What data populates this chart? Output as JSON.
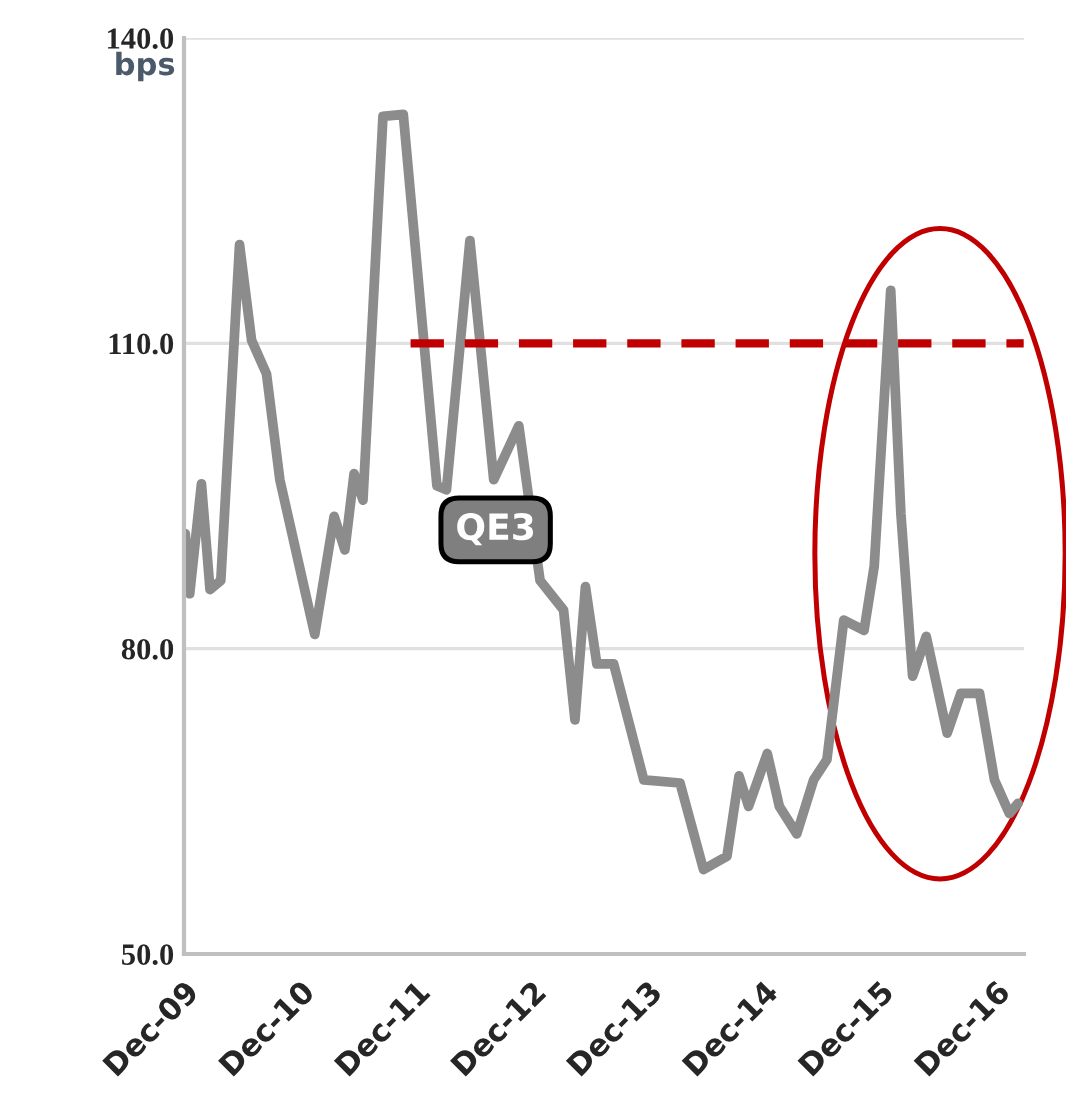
{
  "chart_data": {
    "type": "line",
    "ylabel": "bps",
    "x": [
      "2009-12-05",
      "2009-12-19",
      "2010-01-25",
      "2010-02-21",
      "2010-03-27",
      "2010-05-25",
      "2010-07-02",
      "2010-08-18",
      "2010-09-29",
      "2011-01-17",
      "2011-03-19",
      "2011-04-22",
      "2011-05-21",
      "2011-06-18",
      "2011-08-20",
      "2011-10-23",
      "2012-02-06",
      "2012-03-07",
      "2012-05-20",
      "2012-08-03",
      "2012-10-21",
      "2012-12-27",
      "2013-03-11",
      "2013-04-16",
      "2013-05-19",
      "2013-06-24",
      "2013-08-16",
      "2013-11-19",
      "2014-03-13",
      "2014-05-26",
      "2014-08-08",
      "2014-09-15",
      "2014-10-15",
      "2014-12-13",
      "2015-01-20",
      "2015-03-16",
      "2015-05-08",
      "2015-06-19",
      "2015-08-11",
      "2015-10-14",
      "2015-11-15",
      "2016-01-06",
      "2016-02-07",
      "2016-03-15",
      "2016-04-27",
      "2016-07-02",
      "2016-08-14",
      "2016-10-12",
      "2016-11-28",
      "2017-01-14",
      "2017-02-10"
    ],
    "series": [
      {
        "color": "#8c8c8c",
        "values": [
          91.3,
          85.4,
          96.2,
          85.8,
          86.7,
          119.7,
          110.3,
          107,
          96.6,
          81.4,
          93,
          89.7,
          97.2,
          94.6,
          132.3,
          132.5,
          96,
          95.6,
          120.1,
          96.6,
          101.9,
          86.7,
          83.8,
          73,
          86.1,
          78.5,
          78.5,
          67.1,
          66.8,
          58.3,
          59.6,
          67.5,
          64.5,
          69.7,
          64.5,
          61.8,
          67.1,
          69.1,
          82.8,
          81.8,
          88.1,
          115.2,
          93.3,
          77.3,
          81.2,
          71.7,
          75.6,
          75.6,
          67.1,
          63.8,
          64.8
        ]
      },
      {
        "color": "#c00000",
        "line_style": "dashed",
        "x": [
          "2011-11-15",
          "2017-02-28"
        ],
        "values": [
          110,
          110
        ]
      }
    ],
    "xlim": [
      "2009-12-01",
      "2017-03-01"
    ],
    "xticks": [
      {
        "value": "2009-12-01",
        "label": "Dec-09"
      },
      {
        "value": "2010-12-01",
        "label": "Dec-10"
      },
      {
        "value": "2011-12-01",
        "label": "Dec-11"
      },
      {
        "value": "2012-12-01",
        "label": "Dec-12"
      },
      {
        "value": "2013-12-01",
        "label": "Dec-13"
      },
      {
        "value": "2014-12-01",
        "label": "Dec-14"
      },
      {
        "value": "2015-12-01",
        "label": "Dec-15"
      },
      {
        "value": "2016-12-01",
        "label": "Dec-16"
      }
    ],
    "ylim": [
      50,
      140
    ],
    "yticks": [
      {
        "value": 50,
        "label": "50.0"
      },
      {
        "value": 80,
        "label": "80.0"
      },
      {
        "value": 110,
        "label": "110.0"
      },
      {
        "value": 140,
        "label": "140.0"
      }
    ],
    "grid": "y",
    "annotations": [
      "QE3"
    ]
  }
}
